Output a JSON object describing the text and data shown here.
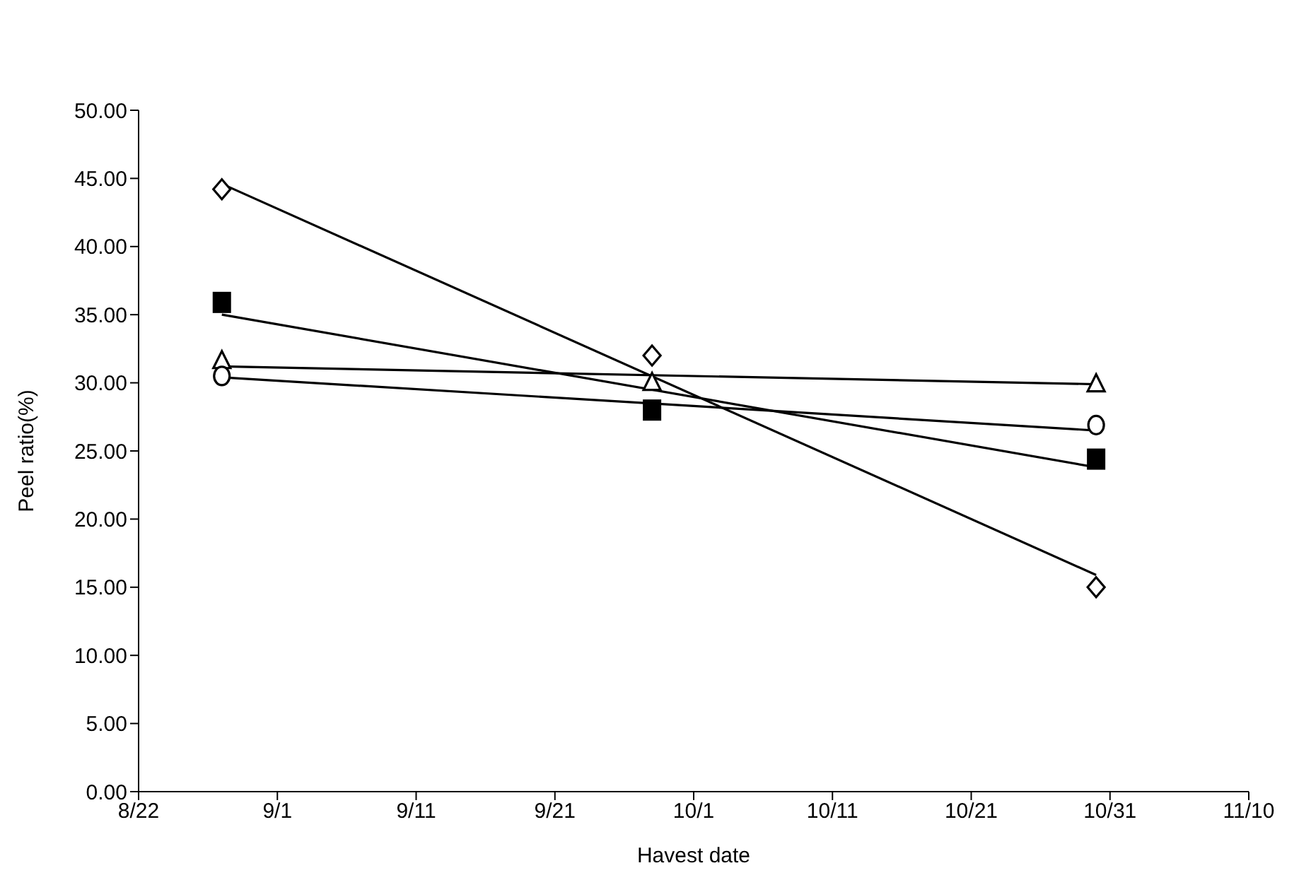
{
  "chart_data": {
    "type": "scatter",
    "xlabel": "Havest date",
    "ylabel": "Peel ratio(%)",
    "x": [
      "--08-28",
      "--09-28",
      "--10-30"
    ],
    "series": [
      {
        "type": "scatter",
        "marker": "diamond",
        "color": "#000000",
        "values": [
          44.2,
          32.0,
          15.0
        ]
      },
      {
        "type": "scatter",
        "marker": "square",
        "color": "#000000",
        "values": [
          35.9,
          28.0,
          24.4
        ]
      },
      {
        "type": "scatter",
        "marker": "triangle",
        "color": "#000000",
        "values": [
          31.6,
          30.0,
          29.9
        ]
      },
      {
        "type": "scatter",
        "marker": "circle",
        "color": "#000000",
        "values": [
          30.5,
          null,
          26.9
        ]
      },
      {
        "type": "line",
        "marker": "none",
        "color": "#000000",
        "x": [
          "--08-28",
          "--10-30"
        ],
        "values": [
          44.6,
          15.9
        ]
      },
      {
        "type": "line",
        "marker": "none",
        "color": "#000000",
        "x": [
          "--08-28",
          "--10-30"
        ],
        "values": [
          35.0,
          23.8
        ]
      },
      {
        "type": "line",
        "marker": "none",
        "color": "#000000",
        "x": [
          "--08-28",
          "--10-30"
        ],
        "values": [
          31.2,
          29.9
        ]
      },
      {
        "type": "line",
        "marker": "none",
        "color": "#000000",
        "x": [
          "--08-28",
          "--10-30"
        ],
        "values": [
          30.4,
          26.5
        ]
      }
    ],
    "xlim": [
      "--08-22",
      "--11-10"
    ],
    "xticks": [
      {
        "value": "--08-22",
        "label": "8/22"
      },
      {
        "value": "--09-01",
        "label": "9/1"
      },
      {
        "value": "--09-11",
        "label": "9/11"
      },
      {
        "value": "--09-21",
        "label": "9/21"
      },
      {
        "value": "--10-01",
        "label": "10/1"
      },
      {
        "value": "--10-11",
        "label": "10/11"
      },
      {
        "value": "--10-21",
        "label": "10/21"
      },
      {
        "value": "--10-31",
        "label": "10/31"
      },
      {
        "value": "--11-10",
        "label": "11/10"
      }
    ],
    "ylim": [
      0,
      50
    ],
    "yticks": [
      {
        "value": 0,
        "label": "0.00"
      },
      {
        "value": 5,
        "label": "5.00"
      },
      {
        "value": 10,
        "label": "10.00"
      },
      {
        "value": 15,
        "label": "15.00"
      },
      {
        "value": 20,
        "label": "20.00"
      },
      {
        "value": 25,
        "label": "25.00"
      },
      {
        "value": 30,
        "label": "30.00"
      },
      {
        "value": 35,
        "label": "35.00"
      },
      {
        "value": 40,
        "label": "40.00"
      },
      {
        "value": 45,
        "label": "45.00"
      },
      {
        "value": 50,
        "label": "50.00"
      }
    ]
  }
}
